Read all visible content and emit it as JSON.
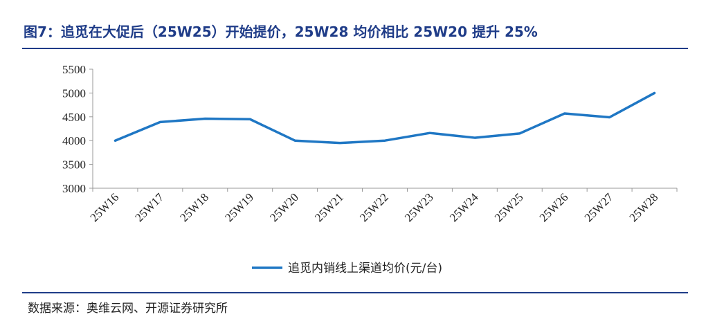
{
  "title": "图7：追觅在大促后（25W25）开始提价，25W28 均价相比 25W20 提升 25%",
  "source": "数据来源：奥维云网、开源证券研究所",
  "chart_data": {
    "type": "line",
    "categories": [
      "25W16",
      "25W17",
      "25W18",
      "25W19",
      "25W20",
      "25W21",
      "25W22",
      "25W23",
      "25W24",
      "25W25",
      "25W26",
      "25W27",
      "25W28"
    ],
    "series": [
      {
        "name": "追觅内销线上渠道均价(元/台)",
        "values": [
          4000,
          4390,
          4460,
          4450,
          4000,
          3950,
          4000,
          4160,
          4060,
          4150,
          4570,
          4490,
          5000
        ],
        "color": "#1f77c4"
      }
    ],
    "yticks": [
      3000,
      3500,
      4000,
      4500,
      5000,
      5500
    ],
    "ylim": [
      3000,
      5500
    ],
    "legend_position": "bottom-center"
  }
}
